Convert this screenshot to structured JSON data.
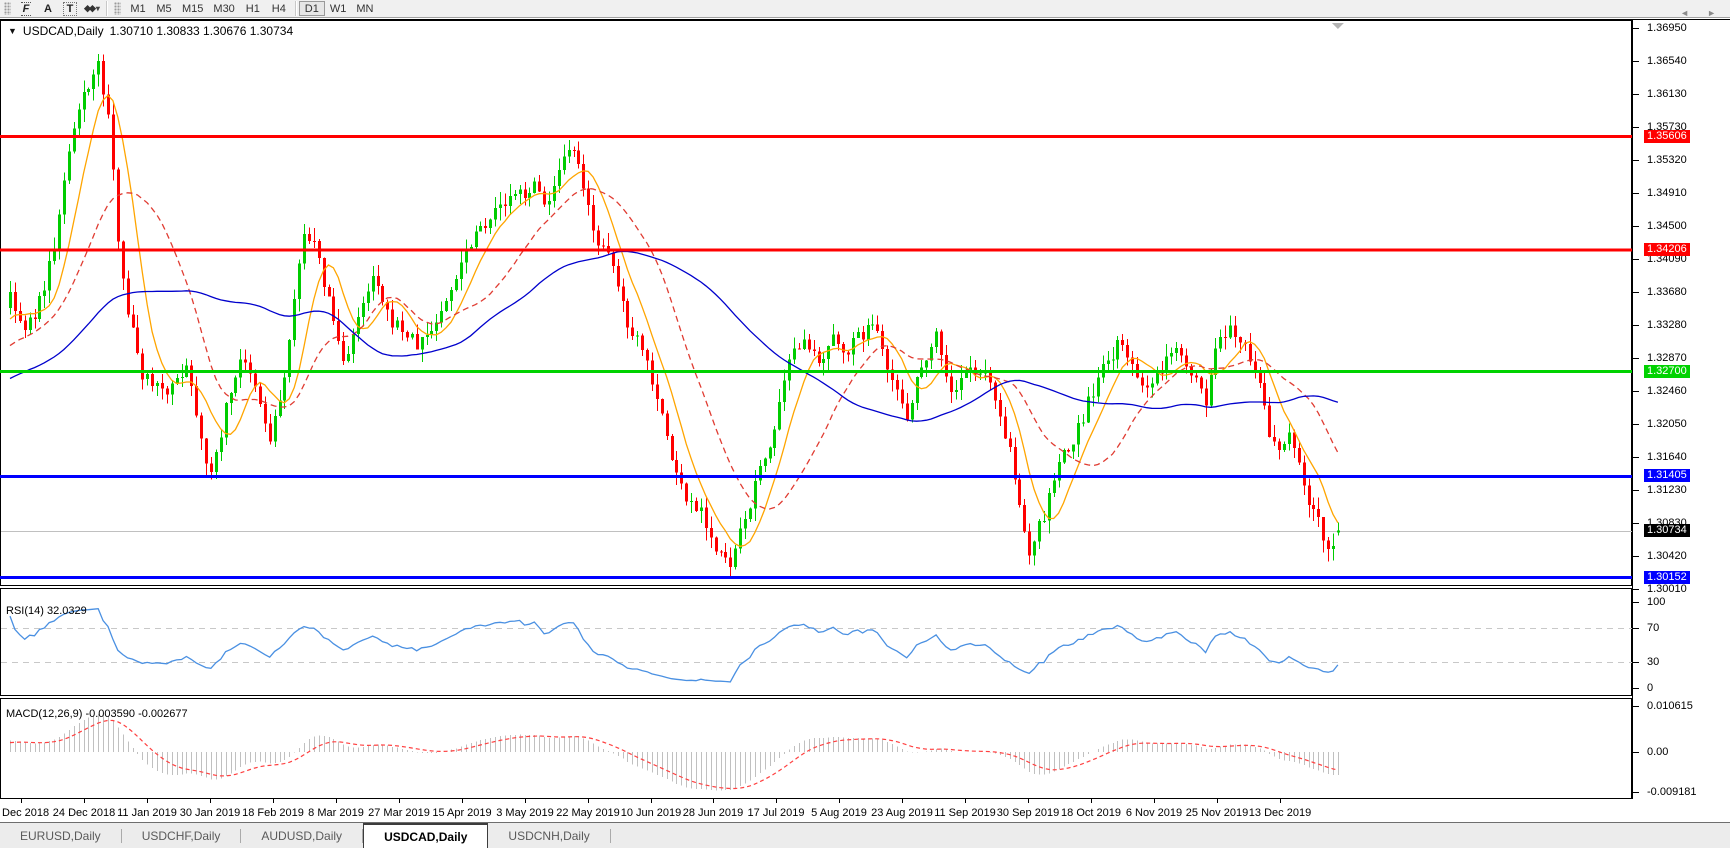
{
  "toolbar": {
    "tools": [
      {
        "name": "fibonacci-tool",
        "glyph": "F"
      },
      {
        "name": "text-tool",
        "glyph": "A"
      },
      {
        "name": "text-label-tool",
        "glyph": "T"
      },
      {
        "name": "arrows-tool",
        "glyph": "◆◆",
        "caret": "▾"
      }
    ],
    "timeframes": [
      "M1",
      "M5",
      "M15",
      "M30",
      "H1",
      "H4",
      "D1",
      "W1",
      "MN"
    ],
    "active_timeframe": "D1"
  },
  "chart": {
    "dropdown_glyph": "▼",
    "title": "USDCAD,Daily",
    "ohlc": "1.30710 1.30833 1.30676 1.30734"
  },
  "price_axis": {
    "labels": [
      "1.36950",
      "1.36540",
      "1.36130",
      "1.35730",
      "1.35320",
      "1.34910",
      "1.34500",
      "1.34090",
      "1.33680",
      "1.33280",
      "1.32870",
      "1.32460",
      "1.32050",
      "1.31640",
      "1.31230",
      "1.30830",
      "1.30420",
      "1.30010"
    ]
  },
  "date_axis": [
    "5 Dec 2018",
    "24 Dec 2018",
    "11 Jan 2019",
    "30 Jan 2019",
    "18 Feb 2019",
    "8 Mar 2019",
    "27 Mar 2019",
    "15 Apr 2019",
    "3 May 2019",
    "22 May 2019",
    "10 Jun 2019",
    "28 Jun 2019",
    "17 Jul 2019",
    "5 Aug 2019",
    "23 Aug 2019",
    "11 Sep 2019",
    "30 Sep 2019",
    "18 Oct 2019",
    "6 Nov 2019",
    "25 Nov 2019",
    "13 Dec 2019"
  ],
  "rsi": {
    "label": "RSI(14) 32.0329",
    "period": 14,
    "current": 32.0329,
    "line_color": "#4a90e2",
    "levels": [
      {
        "value": 100,
        "label": "100",
        "dashed": false
      },
      {
        "value": 70,
        "label": "70",
        "dashed": true
      },
      {
        "value": 30,
        "label": "30",
        "dashed": true
      },
      {
        "value": 0,
        "label": "0",
        "dashed": false
      }
    ]
  },
  "macd": {
    "label": "MACD(12,26,9) -0.003590 -0.002677",
    "fast": 12,
    "slow": 26,
    "signal": 9,
    "current_macd": -0.00359,
    "current_signal": -0.002677,
    "hist_color": "#c0c0c0",
    "signal_color": "#ff4040",
    "axis": [
      {
        "value": 0.010615,
        "label": "0.010615"
      },
      {
        "value": 0.0,
        "label": "0.00"
      },
      {
        "value": -0.009181,
        "label": "-0.009181"
      }
    ]
  },
  "levels": [
    {
      "value": 1.35606,
      "label": "1.35606",
      "color": "#ff0000",
      "thickness": 3
    },
    {
      "value": 1.34206,
      "label": "1.34206",
      "color": "#ff0000",
      "thickness": 3
    },
    {
      "value": 1.327,
      "label": "1.32700",
      "color": "#00d200",
      "thickness": 3
    },
    {
      "value": 1.31405,
      "label": "1.31405",
      "color": "#0000ff",
      "thickness": 3
    },
    {
      "value": 1.30152,
      "label": "1.30152",
      "color": "#0000ff",
      "thickness": 3
    }
  ],
  "current_price": {
    "value": 1.30734,
    "label": "1.30734",
    "line_color": "#c0c0c0",
    "badge_bg": "#000000"
  },
  "tabs": [
    {
      "label": "EURUSD,Daily",
      "active": false
    },
    {
      "label": "USDCHF,Daily",
      "active": false
    },
    {
      "label": "AUDUSD,Daily",
      "active": false
    },
    {
      "label": "USDCAD,Daily",
      "active": true
    },
    {
      "label": "USDCNH,Daily",
      "active": false
    }
  ],
  "tab_arrows": {
    "left": "◄",
    "right": "►"
  },
  "chart_data": {
    "type": "candlestick",
    "symbol": "USDCAD",
    "timeframe": "Daily",
    "bars": 272,
    "seed": 7,
    "up_color": "#00cc00",
    "down_color": "#ff0000",
    "last_bar": {
      "o": 1.3071,
      "h": 1.30833,
      "l": 1.30676,
      "c": 1.30734
    },
    "moving_averages": [
      {
        "period": 8,
        "color": "#ffa500",
        "dashed": false
      },
      {
        "period": 21,
        "color": "#e03c32",
        "dashed": true
      },
      {
        "period": 55,
        "color": "#0000cc",
        "dashed": false
      }
    ],
    "price_range_top": 1.3695,
    "price_range_bottom": 1.3001,
    "anchors": [
      [
        -60,
        1.314
      ],
      [
        -48,
        1.321
      ],
      [
        -36,
        1.3265
      ],
      [
        -24,
        1.324
      ],
      [
        -12,
        1.329
      ],
      [
        -4,
        1.333
      ],
      [
        0,
        1.336
      ],
      [
        3,
        1.3318
      ],
      [
        6,
        1.3355
      ],
      [
        9,
        1.3425
      ],
      [
        12,
        1.354
      ],
      [
        15,
        1.3615
      ],
      [
        18,
        1.3648
      ],
      [
        20,
        1.3585
      ],
      [
        22,
        1.344
      ],
      [
        24,
        1.3345
      ],
      [
        27,
        1.3268
      ],
      [
        30,
        1.3255
      ],
      [
        33,
        1.3248
      ],
      [
        36,
        1.3282
      ],
      [
        39,
        1.3192
      ],
      [
        41,
        1.3138
      ],
      [
        44,
        1.3225
      ],
      [
        47,
        1.3288
      ],
      [
        50,
        1.3248
      ],
      [
        53,
        1.3185
      ],
      [
        56,
        1.3262
      ],
      [
        58,
        1.3352
      ],
      [
        60,
        1.3448
      ],
      [
        62,
        1.3425
      ],
      [
        65,
        1.3358
      ],
      [
        68,
        1.3282
      ],
      [
        71,
        1.3332
      ],
      [
        74,
        1.3385
      ],
      [
        77,
        1.3338
      ],
      [
        80,
        1.3322
      ],
      [
        83,
        1.3302
      ],
      [
        86,
        1.3322
      ],
      [
        89,
        1.3355
      ],
      [
        92,
        1.3408
      ],
      [
        95,
        1.3445
      ],
      [
        98,
        1.3462
      ],
      [
        101,
        1.3478
      ],
      [
        104,
        1.349
      ],
      [
        107,
        1.3498
      ],
      [
        110,
        1.3478
      ],
      [
        113,
        1.3528
      ],
      [
        115,
        1.3545
      ],
      [
        117,
        1.3492
      ],
      [
        120,
        1.3432
      ],
      [
        123,
        1.3398
      ],
      [
        126,
        1.3332
      ],
      [
        129,
        1.3302
      ],
      [
        132,
        1.3242
      ],
      [
        135,
        1.3162
      ],
      [
        138,
        1.3112
      ],
      [
        141,
        1.3102
      ],
      [
        144,
        1.3048
      ],
      [
        147,
        1.3028
      ],
      [
        150,
        1.3088
      ],
      [
        153,
        1.3148
      ],
      [
        156,
        1.3198
      ],
      [
        159,
        1.3278
      ],
      [
        162,
        1.3318
      ],
      [
        165,
        1.3272
      ],
      [
        168,
        1.3308
      ],
      [
        171,
        1.3298
      ],
      [
        174,
        1.3318
      ],
      [
        177,
        1.3328
      ],
      [
        180,
        1.3258
      ],
      [
        183,
        1.3218
      ],
      [
        186,
        1.3278
      ],
      [
        189,
        1.3318
      ],
      [
        192,
        1.3242
      ],
      [
        195,
        1.3268
      ],
      [
        198,
        1.3272
      ],
      [
        201,
        1.3242
      ],
      [
        204,
        1.3168
      ],
      [
        206,
        1.3102
      ],
      [
        208,
        1.3048
      ],
      [
        211,
        1.3092
      ],
      [
        214,
        1.3158
      ],
      [
        217,
        1.3182
      ],
      [
        220,
        1.3232
      ],
      [
        223,
        1.3272
      ],
      [
        226,
        1.3302
      ],
      [
        229,
        1.3282
      ],
      [
        232,
        1.3242
      ],
      [
        235,
        1.3272
      ],
      [
        238,
        1.3308
      ],
      [
        241,
        1.3272
      ],
      [
        244,
        1.3232
      ],
      [
        246,
        1.3298
      ],
      [
        249,
        1.3318
      ],
      [
        252,
        1.3308
      ],
      [
        255,
        1.3252
      ],
      [
        257,
        1.3192
      ],
      [
        259,
        1.3172
      ],
      [
        261,
        1.3198
      ],
      [
        263,
        1.3152
      ],
      [
        265,
        1.3112
      ],
      [
        267,
        1.3088
      ],
      [
        269,
        1.3048
      ],
      [
        271,
        1.30734
      ]
    ]
  }
}
